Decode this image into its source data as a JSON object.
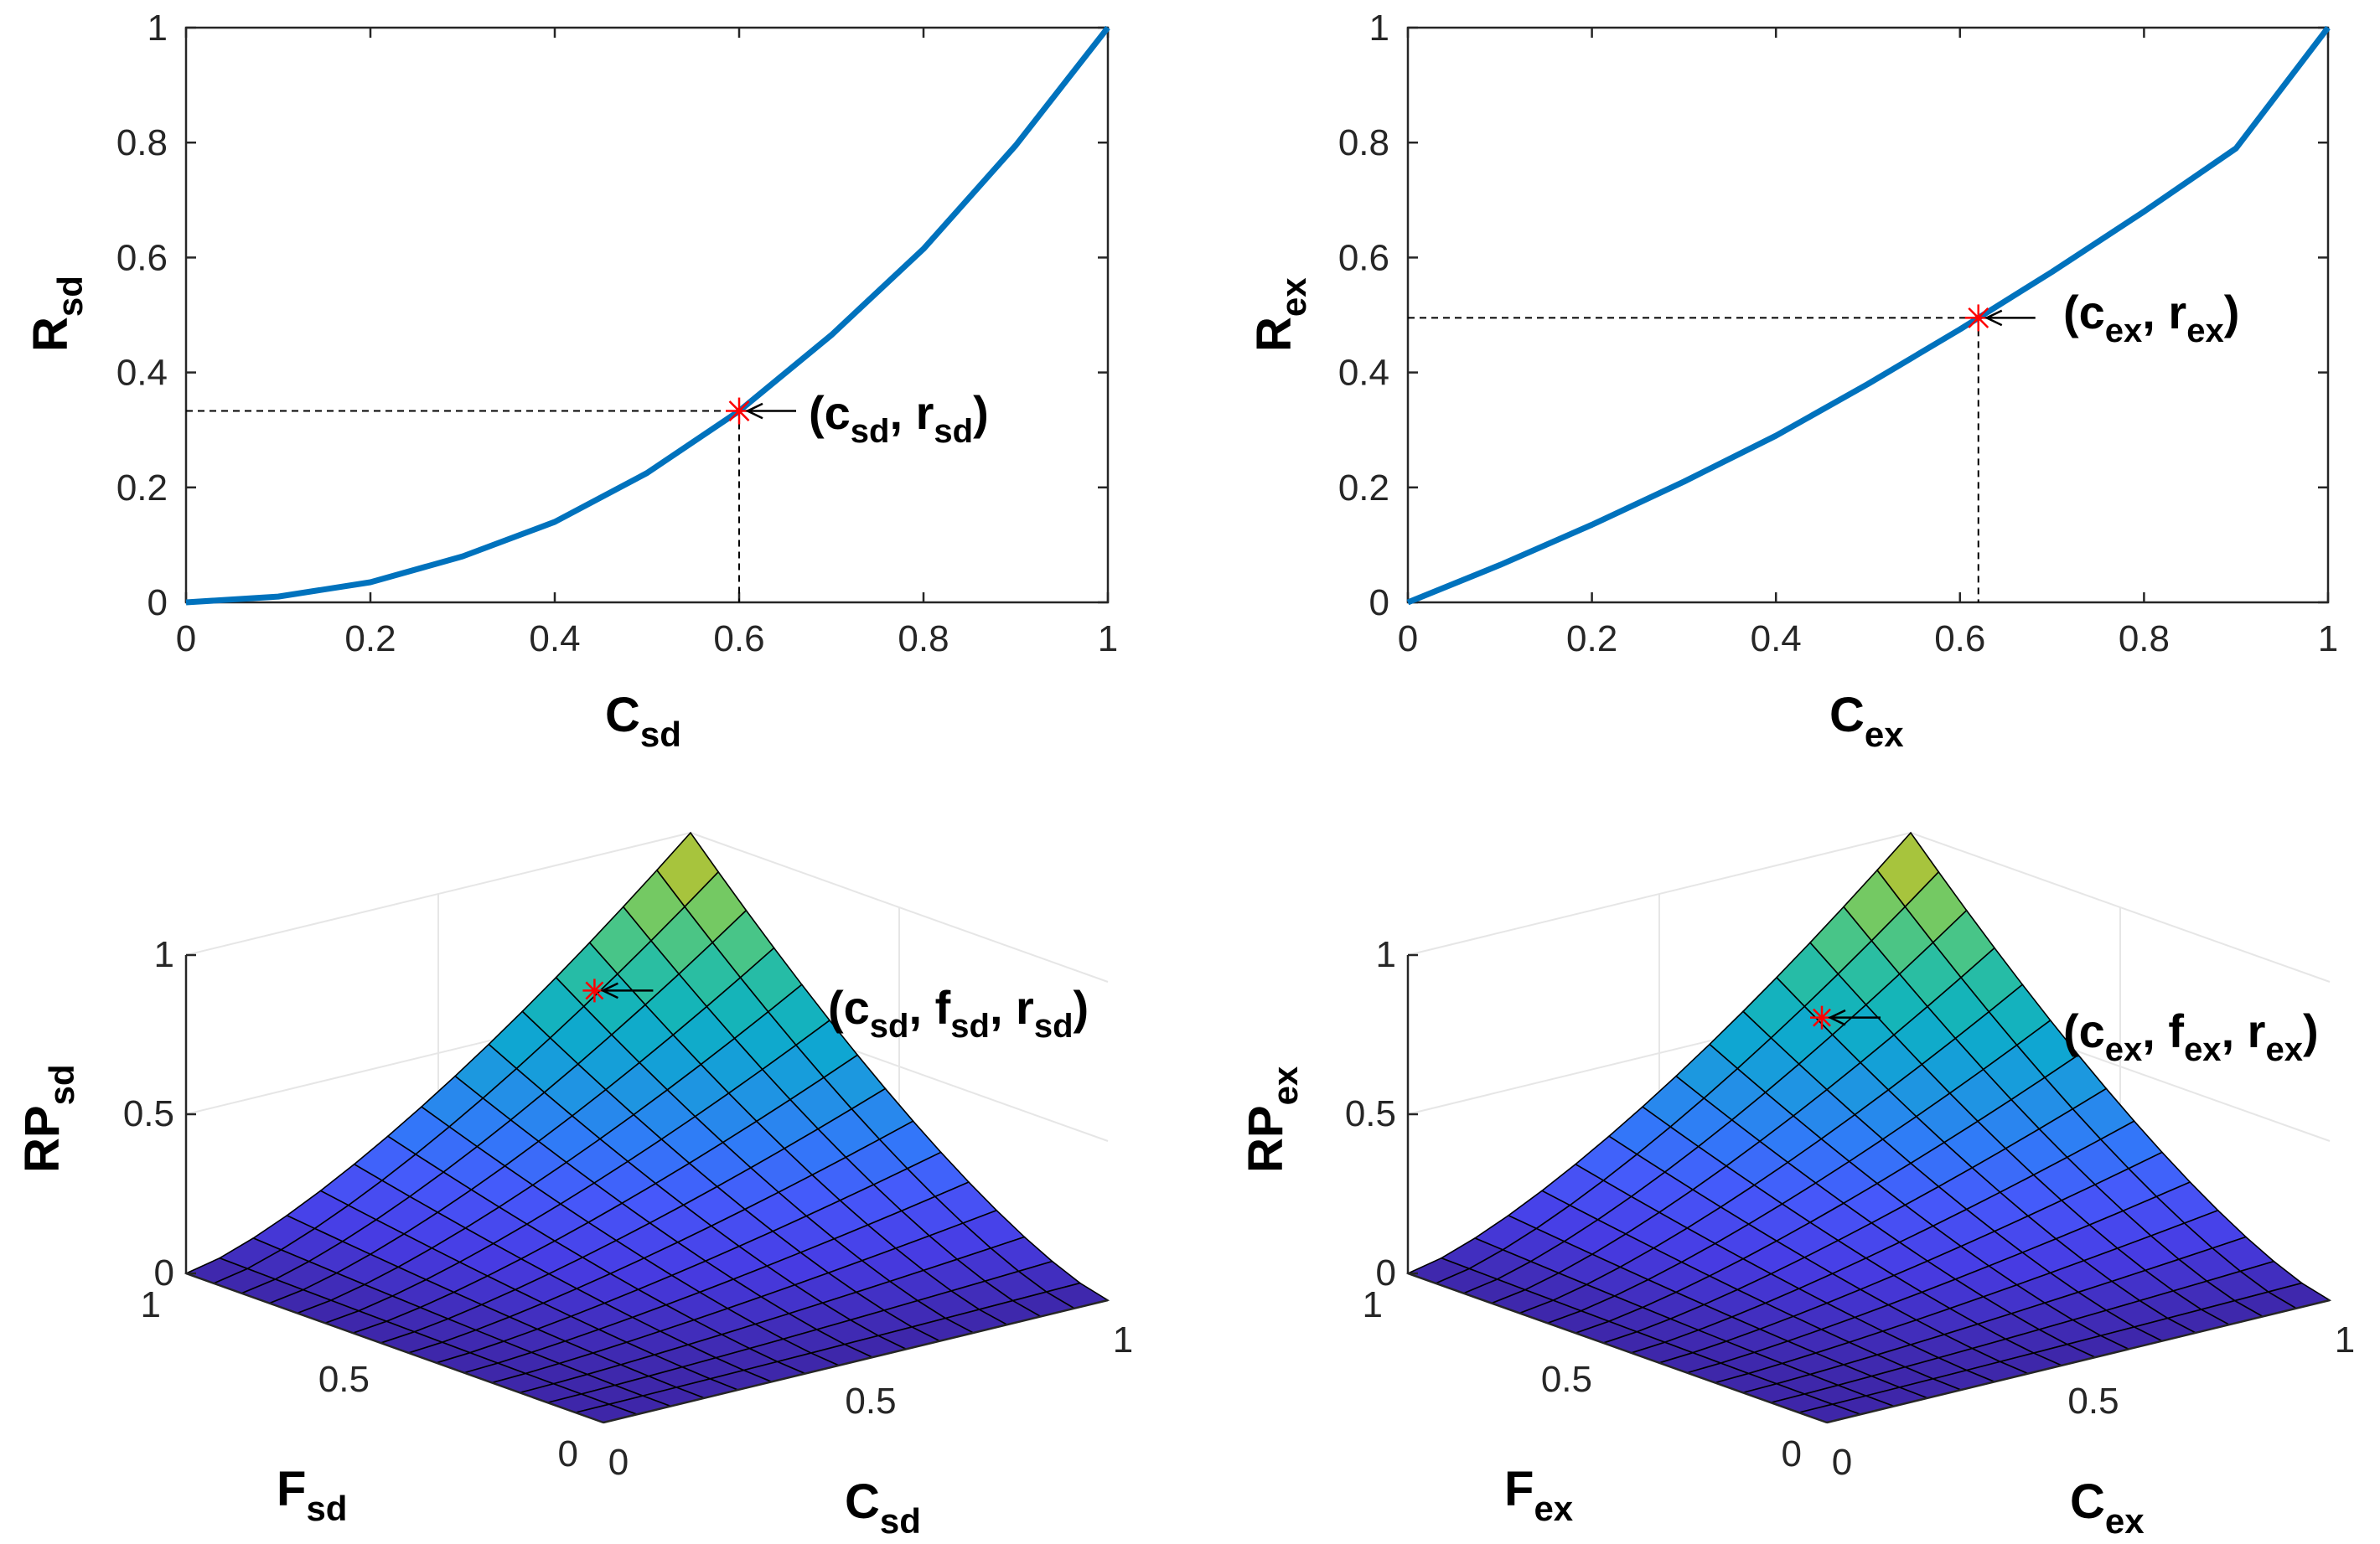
{
  "chart_data": [
    {
      "type": "line",
      "panel": "top-left",
      "x": [
        0,
        0.1,
        0.2,
        0.3,
        0.4,
        0.5,
        0.6,
        0.7,
        0.8,
        0.9,
        1.0
      ],
      "y": [
        0,
        0.01,
        0.035,
        0.08,
        0.14,
        0.225,
        0.333,
        0.465,
        0.615,
        0.795,
        1.0
      ],
      "xlim": [
        0,
        1
      ],
      "ylim": [
        0,
        1
      ],
      "xticks": [
        "0",
        "0.2",
        "0.4",
        "0.6",
        "0.8",
        "1"
      ],
      "yticks": [
        "0",
        "0.2",
        "0.4",
        "0.6",
        "0.8",
        "1"
      ],
      "xlabel": {
        "main": "C",
        "sub": "sd"
      },
      "ylabel": {
        "main": "R",
        "sub": "sd"
      },
      "marker": {
        "x": 0.6,
        "y": 0.333
      },
      "annotation": {
        "pre": "(c",
        "s1": "sd",
        "mid": ", r",
        "s2": "sd",
        "post": ")"
      },
      "line_color": "#0072BD",
      "marker_color": "#FF0000"
    },
    {
      "type": "line",
      "panel": "top-right",
      "x": [
        0,
        0.1,
        0.2,
        0.3,
        0.4,
        0.5,
        0.6,
        0.7,
        0.8,
        0.9,
        1.0
      ],
      "y": [
        0,
        0.065,
        0.135,
        0.21,
        0.29,
        0.38,
        0.475,
        0.575,
        0.68,
        0.79,
        1.0
      ],
      "xlim": [
        0,
        1
      ],
      "ylim": [
        0,
        1
      ],
      "xticks": [
        "0",
        "0.2",
        "0.4",
        "0.6",
        "0.8",
        "1"
      ],
      "yticks": [
        "0",
        "0.2",
        "0.4",
        "0.6",
        "0.8",
        "1"
      ],
      "xlabel": {
        "main": "C",
        "sub": "ex"
      },
      "ylabel": {
        "main": "R",
        "sub": "ex"
      },
      "marker": {
        "x": 0.62,
        "y": 0.495
      },
      "annotation": {
        "pre": "(c",
        "s1": "ex",
        "mid": ", r",
        "s2": "ex",
        "post": ")"
      },
      "line_color": "#0072BD",
      "marker_color": "#FF0000"
    },
    {
      "type": "surface",
      "panel": "bottom-left",
      "function": "RP = (C*F)^1.4 approx",
      "exponent": 1.4,
      "grid": 15,
      "zlim": [
        0,
        1
      ],
      "zticks": [
        "0",
        "0.5",
        "1"
      ],
      "fticks": [
        "0",
        "0.5",
        "1"
      ],
      "cticks": [
        "0",
        "0.5",
        "1"
      ],
      "zlabel": {
        "main": "RP",
        "sub": "sd"
      },
      "flabel": {
        "main": "F",
        "sub": "sd"
      },
      "clabel": {
        "main": "C",
        "sub": "sd"
      },
      "annotation": {
        "pre": "(c",
        "s1": "sd",
        "m1": ", f",
        "s2": "sd",
        "m2": ", r",
        "s3": "sd",
        "post": ")"
      },
      "marker_color": "#FF0000",
      "colormap": "parula"
    },
    {
      "type": "surface",
      "panel": "bottom-right",
      "function": "RP = (C*F)^1.4 approx",
      "exponent": 1.4,
      "grid": 15,
      "zlim": [
        0,
        1
      ],
      "zticks": [
        "0",
        "0.5",
        "1"
      ],
      "fticks": [
        "0",
        "0.5",
        "1"
      ],
      "cticks": [
        "0",
        "0.5",
        "1"
      ],
      "zlabel": {
        "main": "RP",
        "sub": "ex"
      },
      "flabel": {
        "main": "F",
        "sub": "ex"
      },
      "clabel": {
        "main": "C",
        "sub": "ex"
      },
      "annotation": {
        "pre": "(c",
        "s1": "ex",
        "m1": ", f",
        "s2": "ex",
        "m2": ", r",
        "s3": "ex",
        "post": ")"
      },
      "marker_color": "#FF0000",
      "colormap": "parula"
    }
  ]
}
